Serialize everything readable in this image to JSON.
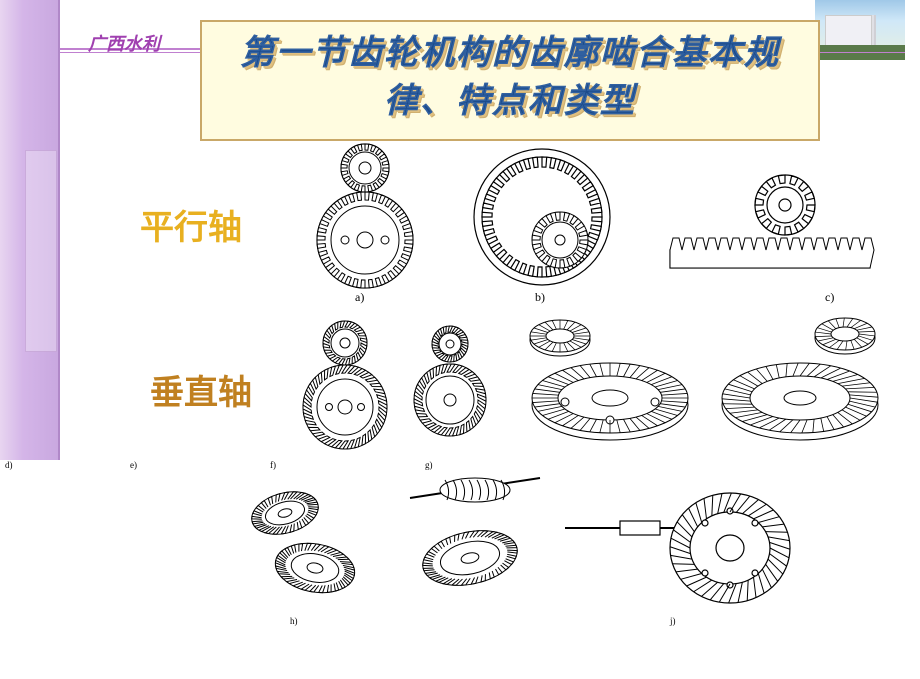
{
  "org_label": "广西水利",
  "title": "第一节齿轮机构的齿廓啮合基本规律、特点和类型",
  "row1": {
    "label": "平行轴",
    "label_color": "#e8b020"
  },
  "row2": {
    "label": "垂直轴",
    "label_color": "#c08020"
  },
  "figure_labels": {
    "a": "a)",
    "b": "b)",
    "c": "c)",
    "d": "d)",
    "e": "e)",
    "f": "f)",
    "g": "g)",
    "h": "h)",
    "j": "j)"
  },
  "colors": {
    "title_bg": "#fffce0",
    "title_border": "#c9a868",
    "title_text": "#1a4a8a",
    "accent_line": "#c080d0",
    "side_gradient_start": "#e8d5f0",
    "side_gradient_end": "#c9a8e0"
  },
  "figures": {
    "row1": [
      {
        "id": "a",
        "type": "external-spur-pair"
      },
      {
        "id": "b",
        "type": "internal-gear-pair"
      },
      {
        "id": "c",
        "type": "rack-and-pinion"
      }
    ],
    "row2": [
      {
        "id": "d",
        "type": "helical-pair"
      },
      {
        "id": "e",
        "type": "helical-pair-small"
      },
      {
        "id": "f",
        "type": "unspecified"
      },
      {
        "id": "g",
        "type": "bevel-straight"
      },
      {
        "id": "",
        "type": "bevel-spiral"
      }
    ],
    "row3": [
      {
        "id": "h",
        "type": "crossed-helical"
      },
      {
        "id": "",
        "type": "worm-and-wheel"
      },
      {
        "id": "j",
        "type": "hypoid-gear"
      }
    ]
  }
}
